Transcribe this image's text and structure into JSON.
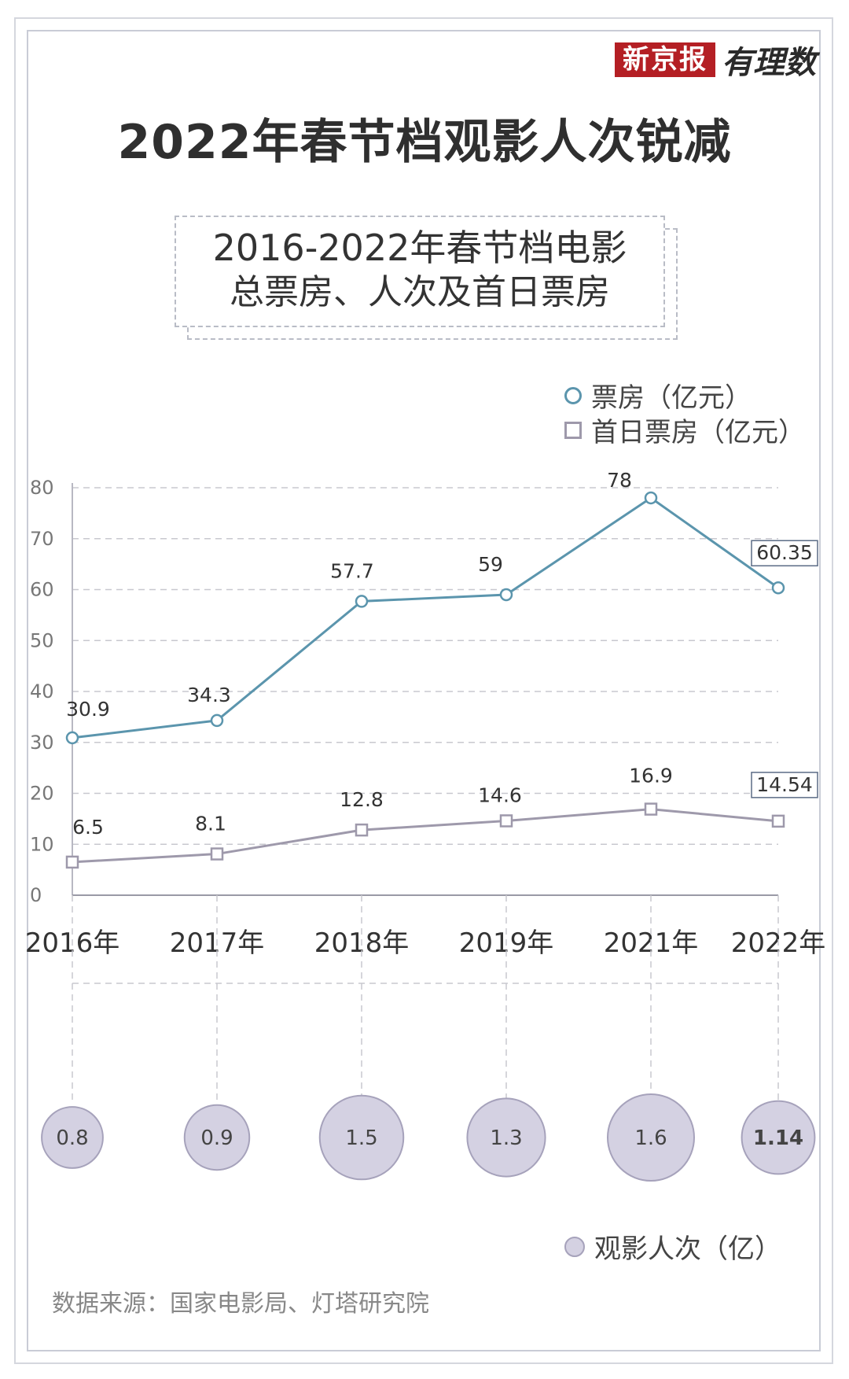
{
  "brand": {
    "name": "新京报",
    "tagline": "有理数"
  },
  "title": "2022年春节档观影人次锐减",
  "subtitle": {
    "line1": "2016-2022年春节档电影",
    "line2": "总票房、人次及首日票房"
  },
  "source": "数据来源：国家电影局、灯塔研究院",
  "colors": {
    "box_office": "#5b95ad",
    "first_day": "#9e99ab",
    "audience_fill": "#d4d1e2",
    "audience_stroke": "#a6a2bb"
  },
  "chart_data": {
    "type": "line",
    "categories": [
      "2016年",
      "2017年",
      "2018年",
      "2019年",
      "2021年",
      "2022年"
    ],
    "series": [
      {
        "name": "票房（亿元）",
        "values": [
          30.9,
          34.3,
          57.7,
          59,
          78,
          60.35
        ],
        "labels": [
          "30.9",
          "34.3",
          "57.7",
          "59",
          "78",
          "60.35"
        ],
        "marker": "circle"
      },
      {
        "name": "首日票房（亿元）",
        "values": [
          6.5,
          8.1,
          12.8,
          14.6,
          16.9,
          14.54
        ],
        "labels": [
          "6.5",
          "8.1",
          "12.8",
          "14.6",
          "16.9",
          "14.54"
        ],
        "marker": "square"
      }
    ],
    "bubbles": {
      "name": "观影人次（亿）",
      "values": [
        0.8,
        0.9,
        1.5,
        1.3,
        1.6,
        1.14
      ],
      "labels": [
        "0.8",
        "0.9",
        "1.5",
        "1.3",
        "1.6",
        "1.14"
      ]
    },
    "ylim": [
      0,
      80
    ],
    "yticks": [
      0,
      10,
      20,
      30,
      40,
      50,
      60,
      70,
      80
    ],
    "grid": true,
    "legend": "top-right",
    "highlight_last": true
  }
}
